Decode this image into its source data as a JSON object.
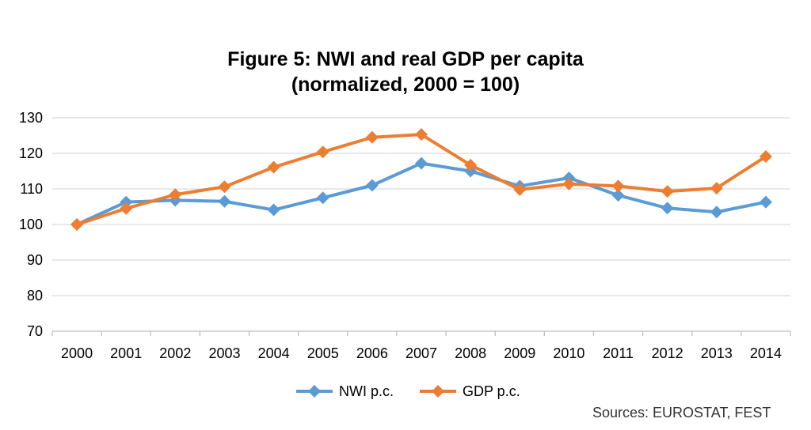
{
  "chart_data": {
    "type": "line",
    "title": "Figure 5: NWI and real GDP per capita",
    "subtitle": "(normalized, 2000 = 100)",
    "xlabel": "",
    "ylabel": "",
    "categories": [
      "2000",
      "2001",
      "2002",
      "2003",
      "2004",
      "2005",
      "2006",
      "2007",
      "2008",
      "2009",
      "2010",
      "2011",
      "2012",
      "2013",
      "2014"
    ],
    "y_ticks": [
      "70",
      "80",
      "90",
      "100",
      "110",
      "120",
      "130"
    ],
    "ylim": [
      70,
      130
    ],
    "grid": true,
    "legend_position": "bottom",
    "series": [
      {
        "name": "NWI p.c.",
        "color": "#5b9bd5",
        "marker": "diamond",
        "values": [
          100,
          106.3,
          106.8,
          106.5,
          104.1,
          107.5,
          111.0,
          117.2,
          115.0,
          110.8,
          113.1,
          108.2,
          104.6,
          103.5,
          106.3
        ]
      },
      {
        "name": "GDP p.c.",
        "color": "#ed7d31",
        "marker": "diamond",
        "values": [
          100,
          104.5,
          108.4,
          110.6,
          116.1,
          120.4,
          124.5,
          125.3,
          116.7,
          109.8,
          111.4,
          110.8,
          109.3,
          110.2,
          119.1
        ]
      }
    ],
    "source_note": "Sources: EUROSTAT, FEST"
  }
}
